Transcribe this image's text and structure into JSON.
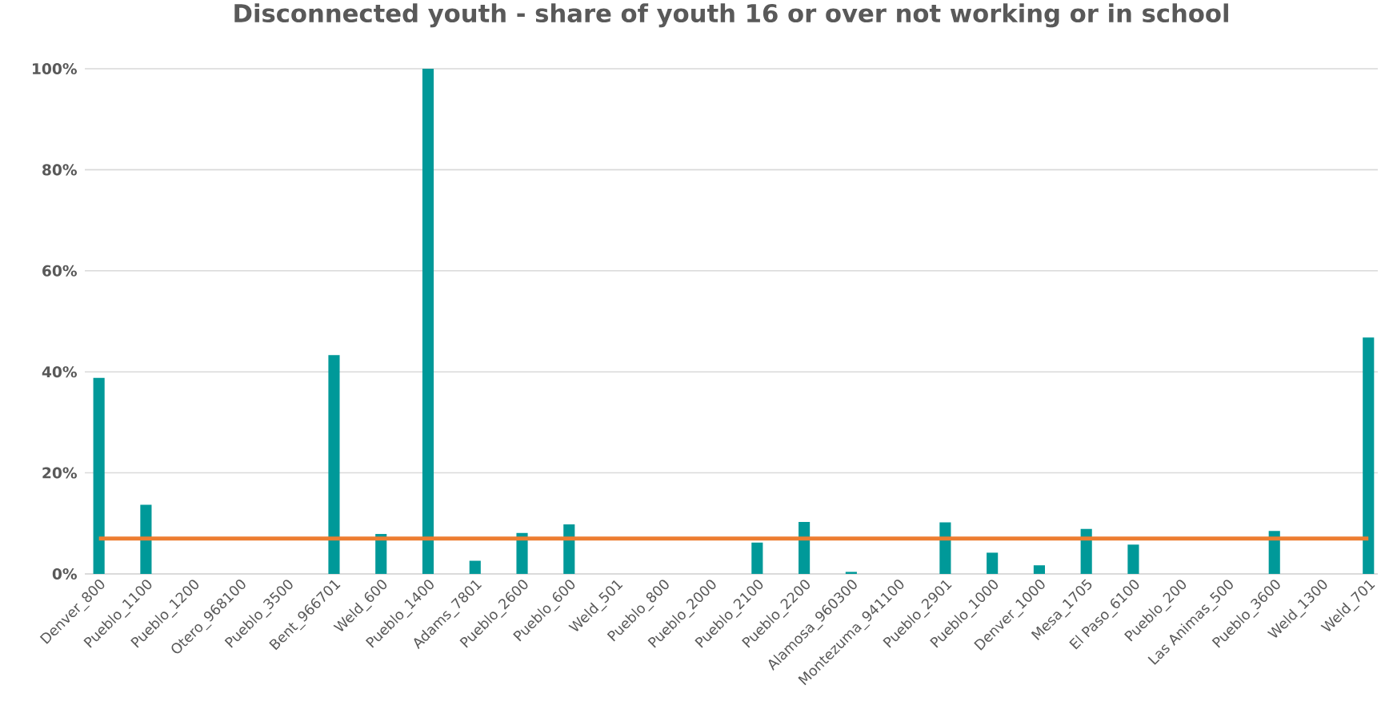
{
  "chart_data": {
    "type": "bar",
    "title": "Disconnected youth - share of youth 16 or over not working or in school",
    "categories": [
      "Denver_800",
      "Pueblo_1100",
      "Pueblo_1200",
      "Otero_968100",
      "Pueblo_3500",
      "Bent_966701",
      "Weld_600",
      "Pueblo_1400",
      "Adams_7801",
      "Pueblo_2600",
      "Pueblo_600",
      "Weld_501",
      "Pueblo_800",
      "Pueblo_2000",
      "Pueblo_2100",
      "Pueblo_2200",
      "Alamosa_960300",
      "Montezuma_941100",
      "Pueblo_2901",
      "Pueblo_1000",
      "Denver_1000",
      "Mesa_1705",
      "El Paso_6100",
      "Pueblo_200",
      "Las Animas_500",
      "Pueblo_3600",
      "Weld_1300",
      "Weld_701"
    ],
    "values": [
      38.8,
      13.7,
      0,
      0,
      0,
      43.3,
      7.9,
      100,
      2.6,
      8.1,
      9.8,
      0,
      0,
      0,
      6.2,
      10.3,
      0.4,
      0,
      10.2,
      4.2,
      1.7,
      8.9,
      5.8,
      0,
      0,
      8.5,
      0,
      46.8
    ],
    "color": "#009999",
    "ylim": [
      0,
      100
    ],
    "yticks": [
      {
        "value": 0,
        "label": "0%"
      },
      {
        "value": 20,
        "label": "20%"
      },
      {
        "value": 40,
        "label": "40%"
      },
      {
        "value": 60,
        "label": "60%"
      },
      {
        "value": 80,
        "label": "80%"
      },
      {
        "value": 100,
        "label": "100%"
      }
    ],
    "grid": "y",
    "ref_lines": [
      {
        "axis": "y",
        "value": 7,
        "color": "#ed7d31"
      }
    ]
  }
}
